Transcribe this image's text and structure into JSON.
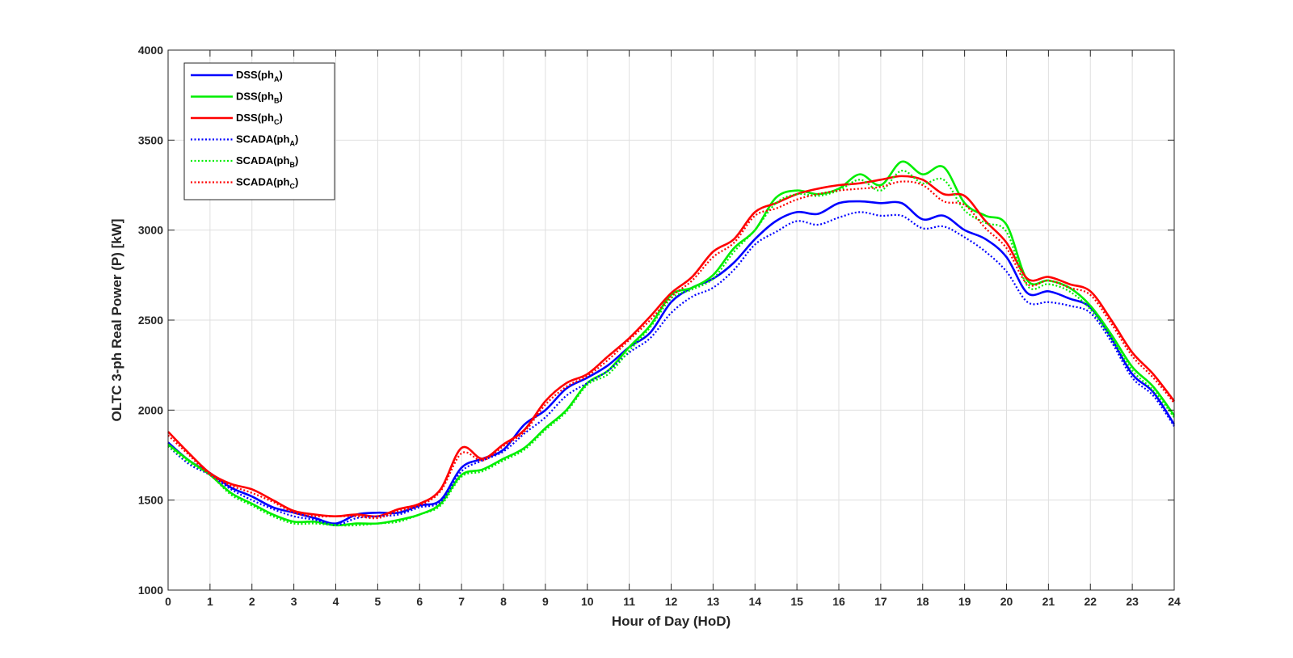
{
  "chart_data": {
    "type": "line",
    "xlabel": "Hour of Day (HoD)",
    "ylabel": "OLTC 3-ph Real Power (P) [kW]",
    "xlim": [
      0,
      24
    ],
    "ylim": [
      1000,
      4000
    ],
    "xticks": [
      0,
      1,
      2,
      3,
      4,
      5,
      6,
      7,
      8,
      9,
      10,
      11,
      12,
      13,
      14,
      15,
      16,
      17,
      18,
      19,
      20,
      21,
      22,
      23,
      24
    ],
    "yticks": [
      1000,
      1500,
      2000,
      2500,
      3000,
      3500,
      4000
    ],
    "grid": true,
    "legend_position": "top-left",
    "x": [
      0,
      0.5,
      1,
      1.5,
      2,
      2.5,
      3,
      3.5,
      4,
      4.5,
      5,
      5.5,
      6,
      6.5,
      7,
      7.5,
      8,
      8.5,
      9,
      9.5,
      10,
      10.5,
      11,
      11.5,
      12,
      12.5,
      13,
      13.5,
      14,
      14.5,
      15,
      15.5,
      16,
      16.5,
      17,
      17.5,
      18,
      18.5,
      19,
      19.5,
      20,
      20.5,
      21,
      21.5,
      22,
      22.5,
      23,
      23.5,
      24
    ],
    "series": [
      {
        "name": "DSS(ph",
        "sub": "A",
        "suffix": ")",
        "color": "#0000ff",
        "style": "solid",
        "values": [
          1820,
          1720,
          1650,
          1570,
          1520,
          1460,
          1430,
          1400,
          1370,
          1420,
          1430,
          1430,
          1470,
          1500,
          1680,
          1730,
          1780,
          1920,
          2000,
          2120,
          2180,
          2250,
          2350,
          2430,
          2600,
          2680,
          2730,
          2820,
          2950,
          3050,
          3100,
          3090,
          3150,
          3160,
          3150,
          3150,
          3060,
          3080,
          3000,
          2950,
          2850,
          2650,
          2660,
          2620,
          2570,
          2400,
          2200,
          2100,
          1920
        ]
      },
      {
        "name": "DSS(ph",
        "sub": "B",
        "suffix": ")",
        "color": "#00ee00",
        "style": "solid",
        "values": [
          1810,
          1720,
          1640,
          1540,
          1480,
          1420,
          1380,
          1380,
          1360,
          1370,
          1370,
          1390,
          1420,
          1480,
          1640,
          1670,
          1730,
          1790,
          1900,
          2000,
          2150,
          2220,
          2350,
          2470,
          2640,
          2680,
          2750,
          2900,
          3000,
          3180,
          3220,
          3200,
          3230,
          3310,
          3250,
          3380,
          3310,
          3350,
          3150,
          3080,
          3030,
          2720,
          2720,
          2680,
          2580,
          2420,
          2240,
          2130,
          1970
        ]
      },
      {
        "name": "DSS(ph",
        "sub": "C",
        "suffix": ")",
        "color": "#ff0000",
        "style": "solid",
        "values": [
          1880,
          1760,
          1650,
          1590,
          1560,
          1500,
          1440,
          1420,
          1410,
          1420,
          1410,
          1450,
          1480,
          1560,
          1790,
          1730,
          1810,
          1890,
          2050,
          2150,
          2200,
          2300,
          2400,
          2520,
          2650,
          2740,
          2880,
          2950,
          3100,
          3150,
          3200,
          3230,
          3250,
          3260,
          3280,
          3300,
          3280,
          3200,
          3190,
          3050,
          2930,
          2730,
          2740,
          2700,
          2660,
          2500,
          2320,
          2200,
          2050
        ]
      },
      {
        "name": "SCADA(ph",
        "sub": "A",
        "suffix": ")",
        "color": "#0000ff",
        "style": "dotted",
        "values": [
          1800,
          1700,
          1640,
          1560,
          1500,
          1450,
          1410,
          1390,
          1360,
          1400,
          1410,
          1420,
          1460,
          1490,
          1660,
          1720,
          1770,
          1870,
          1960,
          2080,
          2150,
          2220,
          2320,
          2400,
          2540,
          2630,
          2680,
          2780,
          2920,
          2990,
          3050,
          3030,
          3070,
          3100,
          3080,
          3080,
          3010,
          3020,
          2960,
          2880,
          2770,
          2600,
          2600,
          2580,
          2540,
          2380,
          2180,
          2080,
          1910
        ]
      },
      {
        "name": "SCADA(ph",
        "sub": "B",
        "suffix": ")",
        "color": "#00ee00",
        "style": "dotted",
        "values": [
          1800,
          1710,
          1640,
          1530,
          1470,
          1410,
          1370,
          1370,
          1360,
          1360,
          1370,
          1380,
          1420,
          1470,
          1630,
          1660,
          1720,
          1780,
          1890,
          1990,
          2140,
          2200,
          2330,
          2460,
          2620,
          2670,
          2730,
          2880,
          3000,
          3150,
          3200,
          3190,
          3220,
          3280,
          3220,
          3330,
          3260,
          3280,
          3110,
          3040,
          2990,
          2690,
          2700,
          2660,
          2560,
          2400,
          2220,
          2110,
          1960
        ]
      },
      {
        "name": "SCADA(ph",
        "sub": "C",
        "suffix": ")",
        "color": "#ff0000",
        "style": "dotted",
        "values": [
          1860,
          1750,
          1640,
          1580,
          1540,
          1490,
          1430,
          1410,
          1410,
          1410,
          1400,
          1440,
          1470,
          1550,
          1760,
          1720,
          1800,
          1880,
          2030,
          2130,
          2190,
          2280,
          2390,
          2500,
          2630,
          2720,
          2850,
          2930,
          3080,
          3120,
          3170,
          3200,
          3220,
          3230,
          3240,
          3270,
          3250,
          3160,
          3140,
          3010,
          2900,
          2700,
          2720,
          2680,
          2640,
          2480,
          2300,
          2180,
          2040
        ]
      }
    ]
  }
}
